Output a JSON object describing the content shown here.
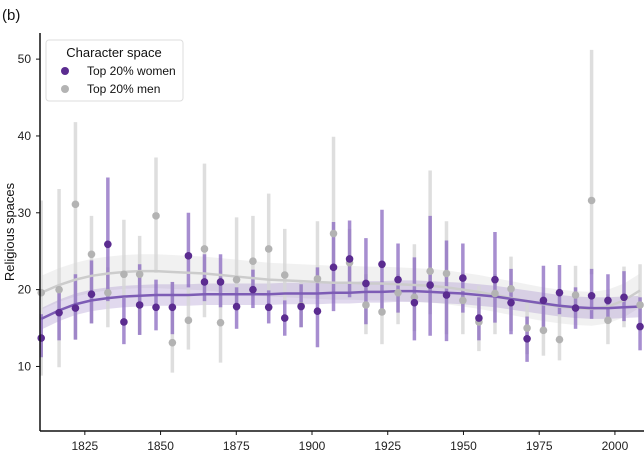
{
  "panel_label": "(b)",
  "chart_data": {
    "type": "scatter",
    "title": "",
    "xlabel": "",
    "ylabel": "Religious spaces",
    "xlim": [
      1810.2,
      2009.6
    ],
    "ylim": [
      1.6,
      53.4
    ],
    "xticks": [
      1825,
      1850,
      1875,
      1900,
      1925,
      1950,
      1975,
      2000
    ],
    "yticks": [
      10,
      20,
      30,
      40,
      50
    ],
    "grid": false,
    "legend": {
      "title": "Character space",
      "placement": "top-left"
    },
    "x": [
      1810.6,
      1816.5,
      1821.9,
      1827.2,
      1832.6,
      1837.9,
      1843.1,
      1848.5,
      1853.9,
      1859.2,
      1864.5,
      1869.8,
      1875.1,
      1880.5,
      1885.7,
      1891.0,
      1896.4,
      1901.8,
      1907.1,
      1912.4,
      1917.8,
      1923.1,
      1928.4,
      1933.8,
      1939.0,
      1944.4,
      1949.8,
      1955.1,
      1960.4,
      1965.7,
      1971.0,
      1976.4,
      1981.7,
      1987.0,
      1992.3,
      1997.7,
      2003.0,
      2008.3
    ],
    "series": [
      {
        "name": "Top 20% women",
        "color": "#5b2c90",
        "bar_color": "#8a68c0",
        "values": [
          13.7,
          17.0,
          17.6,
          19.4,
          25.9,
          15.8,
          18.0,
          17.7,
          17.7,
          24.4,
          21.0,
          21.0,
          17.8,
          20.0,
          17.7,
          16.3,
          17.8,
          17.2,
          22.9,
          24.0,
          20.8,
          23.3,
          21.3,
          18.3,
          20.6,
          19.3,
          21.5,
          16.3,
          21.3,
          18.3,
          13.6,
          18.6,
          19.6,
          17.6,
          19.2,
          18.6,
          19.0,
          15.2
        ],
        "lower": [
          11.2,
          13.4,
          13.5,
          15.6,
          18.5,
          12.9,
          14.1,
          14.7,
          14.2,
          20.3,
          18.5,
          17.7,
          14.9,
          17.6,
          15.6,
          14.0,
          15.1,
          12.5,
          17.2,
          19.0,
          15.5,
          16.8,
          17.0,
          13.4,
          14.0,
          13.3,
          17.0,
          13.4,
          15.7,
          14.2,
          10.6,
          14.6,
          16.8,
          14.9,
          16.2,
          15.9,
          15.9,
          12.1
        ],
        "upper": [
          16.8,
          20.3,
          22.0,
          23.8,
          34.6,
          18.9,
          23.3,
          21.3,
          21.0,
          30.0,
          24.6,
          24.6,
          20.3,
          22.6,
          19.9,
          18.6,
          20.7,
          22.9,
          28.8,
          29.0,
          26.7,
          30.4,
          26.0,
          24.2,
          29.6,
          26.4,
          26.0,
          19.0,
          27.5,
          22.7,
          16.5,
          23.1,
          23.2,
          20.3,
          22.7,
          22.0,
          22.4,
          19.0
        ],
        "smooth": [
          16.2,
          17.3,
          18.1,
          18.6,
          18.9,
          19.1,
          19.2,
          19.3,
          19.3,
          19.3,
          19.4,
          19.4,
          19.4,
          19.4,
          19.4,
          19.5,
          19.5,
          19.5,
          19.6,
          19.6,
          19.7,
          19.7,
          19.8,
          19.8,
          19.7,
          19.6,
          19.5,
          19.3,
          19.1,
          18.8,
          18.5,
          18.2,
          17.9,
          17.7,
          17.6,
          17.6,
          17.7,
          17.8
        ],
        "smooth_band": 1.4
      },
      {
        "name": "Top 20% men",
        "color": "#b3b3b3",
        "bar_color": "#d6d6d6",
        "values": [
          19.6,
          20.0,
          31.1,
          24.6,
          19.6,
          22.0,
          22.0,
          29.6,
          13.1,
          16.0,
          25.3,
          15.7,
          21.3,
          23.7,
          25.3,
          21.9,
          17.9,
          21.4,
          27.3,
          23.5,
          18.0,
          17.1,
          19.6,
          19.0,
          22.4,
          22.1,
          18.6,
          15.8,
          19.5,
          20.1,
          15.0,
          14.7,
          13.5,
          19.3,
          31.6,
          16.0,
          19.0,
          18.0
        ],
        "lower": [
          8.8,
          9.9,
          13.5,
          15.6,
          15.1,
          18.8,
          14.2,
          22.2,
          9.2,
          12.2,
          16.4,
          10.5,
          17.2,
          19.0,
          19.0,
          18.6,
          15.1,
          20.3,
          20.3,
          19.2,
          14.2,
          12.9,
          15.5,
          14.6,
          16.8,
          14.2,
          14.2,
          12.0,
          14.2,
          14.6,
          11.6,
          11.4,
          10.8,
          16.4,
          22.0,
          12.9,
          15.1,
          14.6
        ],
        "upper": [
          31.6,
          33.1,
          41.8,
          29.6,
          22.9,
          29.1,
          27.0,
          37.2,
          21.0,
          20.1,
          36.4,
          22.5,
          29.4,
          29.6,
          32.5,
          27.9,
          21.2,
          28.9,
          39.9,
          27.9,
          22.0,
          20.3,
          22.0,
          25.9,
          35.5,
          28.9,
          20.3,
          20.5,
          22.0,
          24.3,
          18.6,
          18.1,
          19.9,
          23.1,
          51.2,
          19.4,
          23.0,
          23.3
        ],
        "smooth": [
          19.6,
          20.6,
          21.3,
          21.8,
          22.1,
          22.3,
          22.4,
          22.4,
          22.3,
          22.2,
          22.1,
          21.9,
          21.7,
          21.5,
          21.3,
          21.2,
          21.1,
          21.0,
          20.9,
          20.9,
          20.8,
          20.8,
          20.7,
          20.6,
          20.5,
          20.3,
          20.0,
          19.7,
          19.3,
          18.9,
          18.5,
          18.1,
          17.8,
          17.6,
          17.5,
          17.8,
          18.6,
          19.9
        ],
        "smooth_band": 2.2
      }
    ]
  }
}
